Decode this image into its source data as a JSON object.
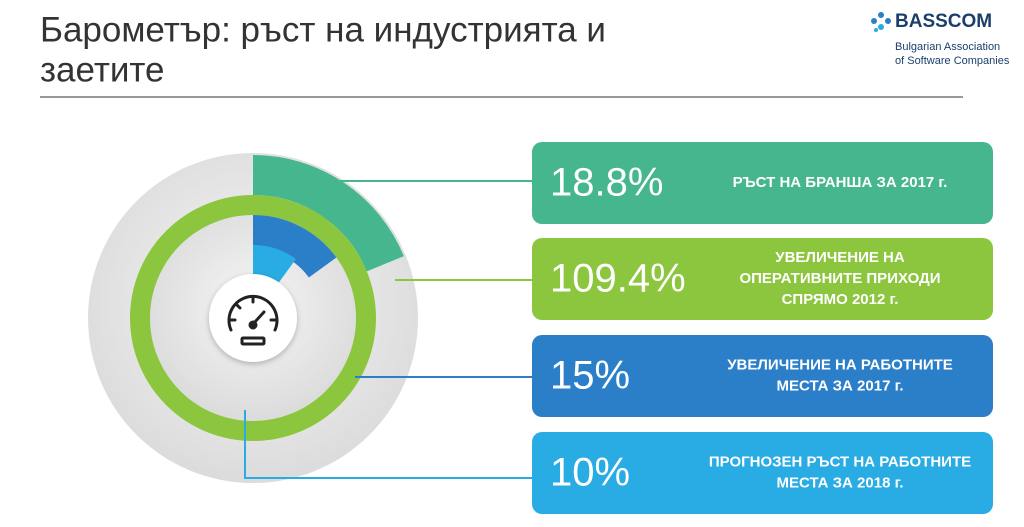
{
  "chart_data": {
    "type": "radial",
    "title": "Барометър: ръст на индустрията и заетите",
    "logo": {
      "name": "BASSCOM",
      "subtitle": [
        "Bulgarian Association",
        "of Software Companies"
      ]
    },
    "series": [
      {
        "name": [
          "РЪСТ НА БРАНША ЗА 2017 г."
        ],
        "color": "#45b68e",
        "values": [
          18.8
        ],
        "value_labels": [
          "18.8%"
        ]
      },
      {
        "name": [
          "УВЕЛИЧЕНИЕ НА",
          "ОПЕРАТИВНИТЕ ПРИХОДИ",
          "СПРЯМО 2012 г."
        ],
        "color": "#8cc63e",
        "values": [
          109.4
        ],
        "value_labels": [
          "109.4%"
        ]
      },
      {
        "name": [
          "УВЕЛИЧЕНИЕ НА РАБОТНИТЕ",
          "МЕСТА ЗА 2017 г."
        ],
        "color": "#2b7fc8",
        "values": [
          15
        ],
        "value_labels": [
          "15%"
        ]
      },
      {
        "name": [
          "ПРОГНОЗЕН РЪСТ НА РАБОТНИТЕ",
          "МЕСТА ЗА 2018 г."
        ],
        "color": "#29ace3",
        "values": [
          10
        ],
        "value_labels": [
          "10%"
        ]
      }
    ]
  }
}
